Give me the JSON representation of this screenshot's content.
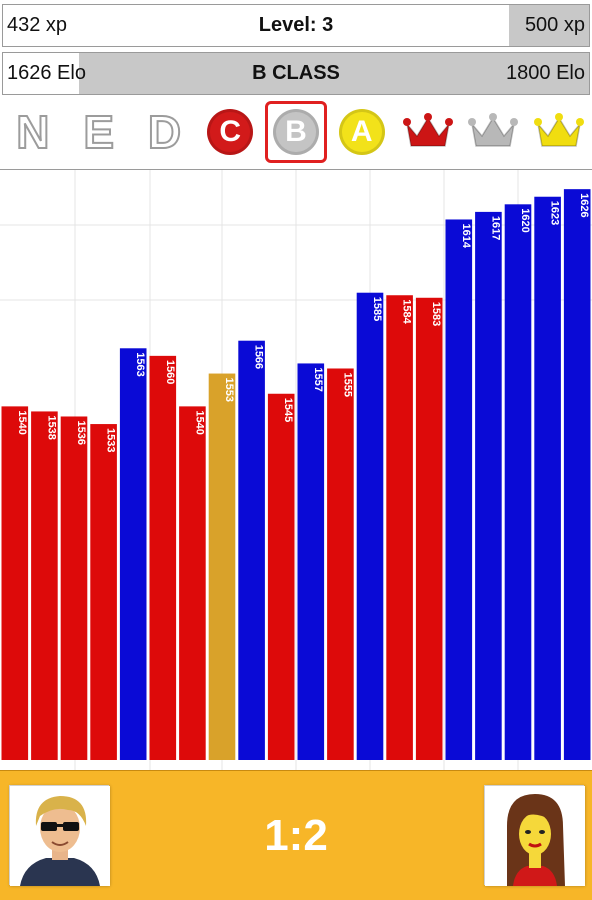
{
  "xp_bar": {
    "current_label": "432 xp",
    "level_label": "Level: 3",
    "target_label": "500 xp",
    "progress": 0.864
  },
  "elo_bar": {
    "current_label": "1626 Elo",
    "class_label": "B CLASS",
    "target_label": "1800 Elo",
    "progress": 0.13
  },
  "classes": [
    {
      "name": "N",
      "style": "letter"
    },
    {
      "name": "E",
      "style": "letter"
    },
    {
      "name": "D",
      "style": "letter"
    },
    {
      "name": "C",
      "style": "coin",
      "color": "#d21a1a",
      "label": "C"
    },
    {
      "name": "B",
      "style": "coin",
      "color": "#c4c4c4",
      "label": "B",
      "selected": true
    },
    {
      "name": "A",
      "style": "coin",
      "color": "#f2e21a",
      "label": "A"
    },
    {
      "name": "red crown",
      "style": "crown",
      "color": "#cc1515"
    },
    {
      "name": "silver crown",
      "style": "crown",
      "color": "#b8b8b8"
    },
    {
      "name": "gold crown",
      "style": "crown",
      "color": "#f0dd10"
    }
  ],
  "chart_data": {
    "type": "bar",
    "values": [
      1540,
      1538,
      1536,
      1533,
      1563,
      1560,
      1540,
      1553,
      1566,
      1545,
      1557,
      1555,
      1585,
      1584,
      1583,
      1614,
      1617,
      1620,
      1623,
      1626
    ],
    "outcomes": [
      "loss",
      "loss",
      "loss",
      "loss",
      "win",
      "loss",
      "loss",
      "draw",
      "win",
      "loss",
      "win",
      "loss",
      "win",
      "loss",
      "loss",
      "win",
      "win",
      "win",
      "win",
      "win"
    ],
    "colors": {
      "win": "#0a0ad6",
      "loss": "#dd0a0a",
      "draw": "#d9a22a"
    },
    "grid": true
  },
  "match": {
    "score": "1:2"
  }
}
